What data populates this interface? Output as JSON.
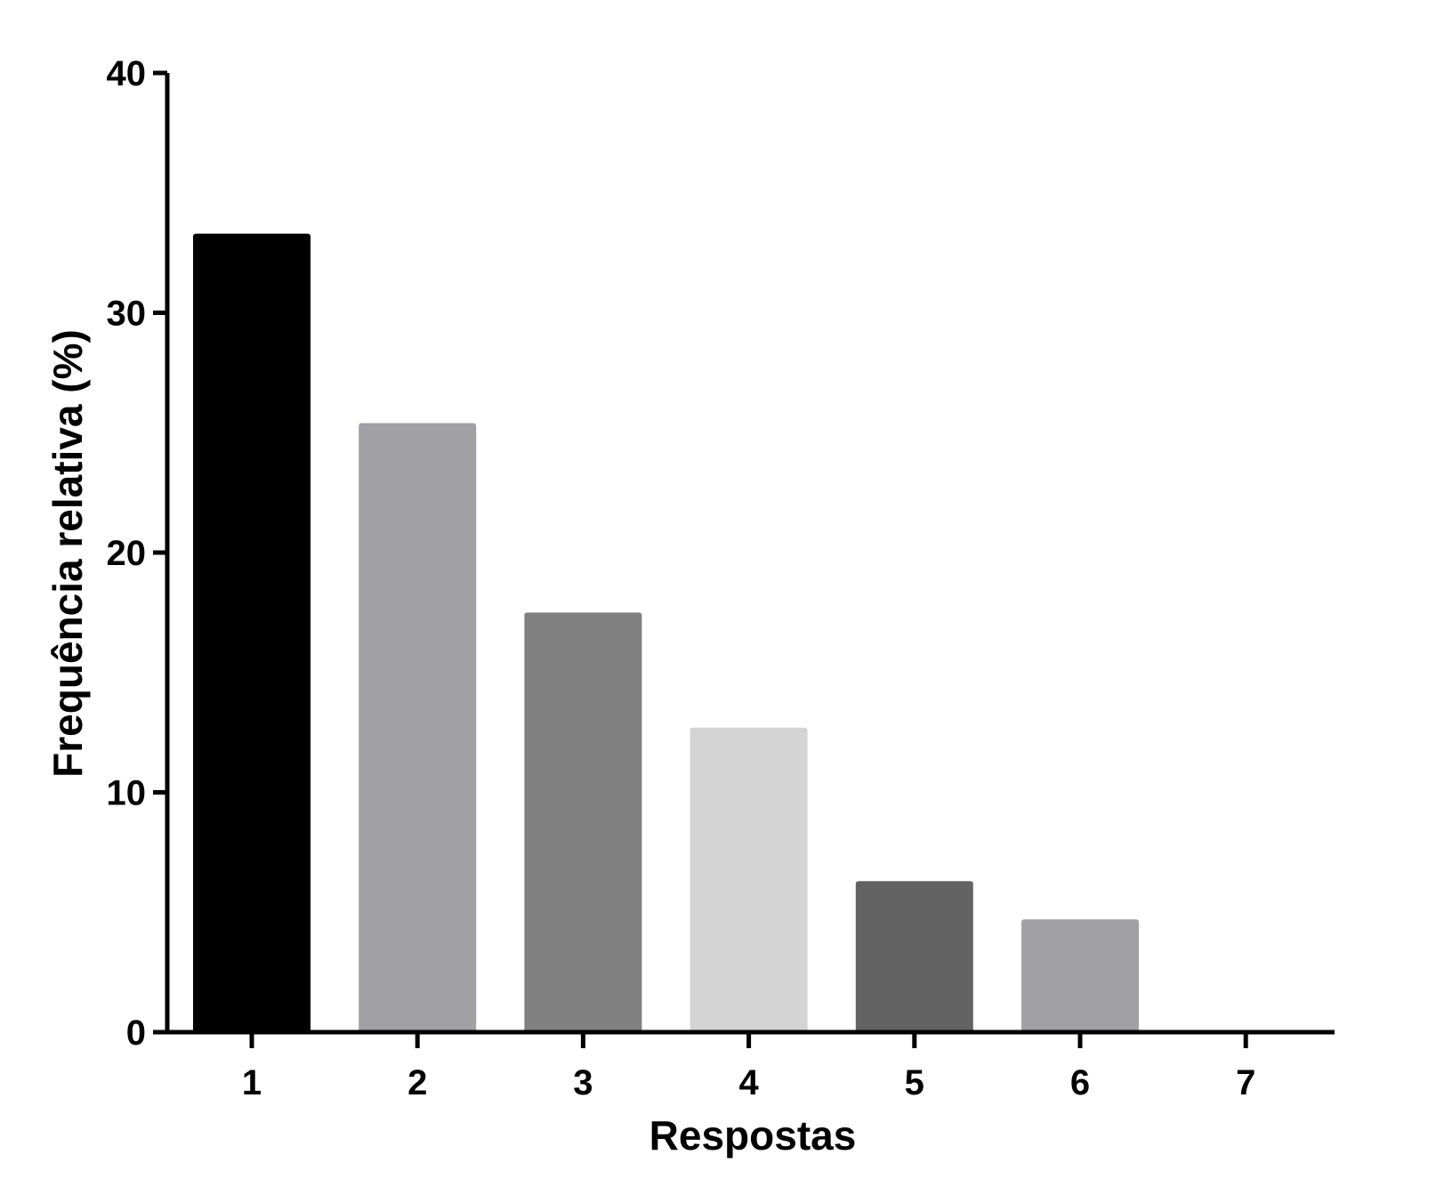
{
  "chart_data": {
    "type": "bar",
    "title": "",
    "xlabel": "Respostas",
    "ylabel": "Frequência relativa (%)",
    "categories": [
      "1",
      "2",
      "3",
      "4",
      "5",
      "6",
      "7"
    ],
    "values": [
      33.3,
      25.4,
      17.5,
      12.7,
      6.3,
      4.7,
      0
    ],
    "bar_colors": [
      "#000000",
      "#a1a1a5",
      "#808080",
      "#d4d4d4",
      "#636363",
      "#a1a1a5",
      "#808080"
    ],
    "ylim": [
      0,
      40
    ],
    "yticks": [
      {
        "value": 0,
        "label": "0"
      },
      {
        "value": 10,
        "label": "10"
      },
      {
        "value": 20,
        "label": "20"
      },
      {
        "value": 30,
        "label": "30"
      },
      {
        "value": 40,
        "label": "40"
      }
    ],
    "grid": false,
    "legend": "none"
  }
}
